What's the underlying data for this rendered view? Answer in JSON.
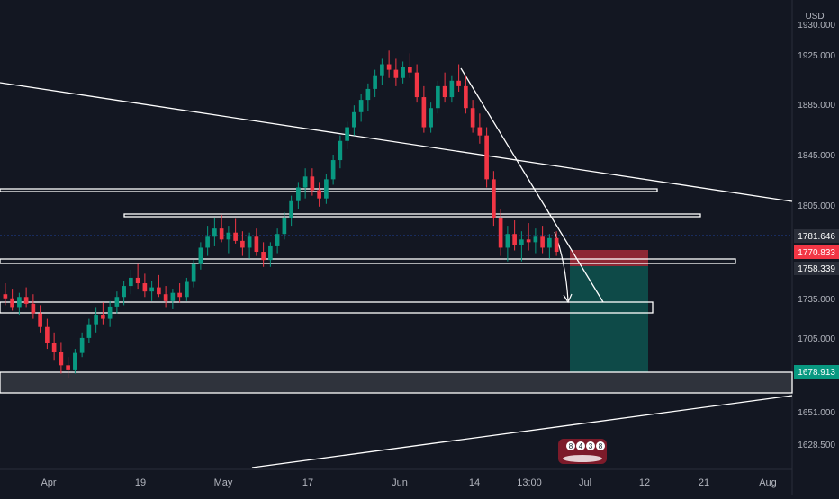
{
  "chart_data": {
    "type": "candlestick",
    "currency": "USD",
    "ylim": [
      1612,
      1955
    ],
    "price_ticks": [
      "1930.000",
      "1925.000",
      "1885.000",
      "1845.000",
      "1805.000",
      "1735.000",
      "1705.000",
      "1651.000",
      "1628.500"
    ],
    "time_ticks": [
      "Apr",
      "19",
      "May",
      "17",
      "Jun",
      "14",
      "13:00",
      "Jul",
      "12",
      "21",
      "Aug"
    ],
    "price_labels": [
      {
        "value": "1781.646",
        "color": "#2a2e39"
      },
      {
        "value": "1770.833",
        "color": "#f23645"
      },
      {
        "value": "1758.339",
        "color": "#2a2e39"
      },
      {
        "value": "1678.913",
        "color": "#089981"
      }
    ],
    "position": {
      "type": "short",
      "entry": 1770.833,
      "stop": 1781.646,
      "target": 1678.913
    },
    "candles_ohlc": [
      [
        1740,
        1748,
        1732,
        1737
      ],
      [
        1737,
        1744,
        1728,
        1730
      ],
      [
        1730,
        1741,
        1725,
        1738
      ],
      [
        1738,
        1745,
        1730,
        1733
      ],
      [
        1733,
        1740,
        1722,
        1726
      ],
      [
        1726,
        1732,
        1712,
        1716
      ],
      [
        1716,
        1722,
        1700,
        1704
      ],
      [
        1704,
        1712,
        1692,
        1698
      ],
      [
        1698,
        1705,
        1682,
        1688
      ],
      [
        1688,
        1694,
        1679,
        1685
      ],
      [
        1685,
        1700,
        1682,
        1697
      ],
      [
        1697,
        1712,
        1694,
        1708
      ],
      [
        1708,
        1722,
        1704,
        1718
      ],
      [
        1718,
        1730,
        1712,
        1725
      ],
      [
        1725,
        1734,
        1718,
        1722
      ],
      [
        1722,
        1735,
        1716,
        1731
      ],
      [
        1731,
        1742,
        1726,
        1738
      ],
      [
        1738,
        1750,
        1732,
        1746
      ],
      [
        1746,
        1758,
        1740,
        1752
      ],
      [
        1752,
        1762,
        1744,
        1748
      ],
      [
        1748,
        1755,
        1738,
        1742
      ],
      [
        1742,
        1750,
        1735,
        1745
      ],
      [
        1745,
        1754,
        1738,
        1740
      ],
      [
        1740,
        1746,
        1730,
        1735
      ],
      [
        1735,
        1744,
        1729,
        1741
      ],
      [
        1741,
        1748,
        1734,
        1738
      ],
      [
        1738,
        1752,
        1735,
        1749
      ],
      [
        1749,
        1765,
        1745,
        1762
      ],
      [
        1762,
        1778,
        1758,
        1774
      ],
      [
        1774,
        1790,
        1768,
        1782
      ],
      [
        1782,
        1796,
        1775,
        1788
      ],
      [
        1788,
        1798,
        1778,
        1780
      ],
      [
        1780,
        1790,
        1770,
        1785
      ],
      [
        1785,
        1795,
        1777,
        1779
      ],
      [
        1779,
        1786,
        1768,
        1774
      ],
      [
        1774,
        1785,
        1766,
        1782
      ],
      [
        1782,
        1788,
        1768,
        1771
      ],
      [
        1771,
        1778,
        1760,
        1765
      ],
      [
        1765,
        1778,
        1760,
        1775
      ],
      [
        1775,
        1788,
        1770,
        1784
      ],
      [
        1784,
        1800,
        1780,
        1796
      ],
      [
        1796,
        1812,
        1790,
        1808
      ],
      [
        1808,
        1822,
        1802,
        1818
      ],
      [
        1818,
        1832,
        1810,
        1826
      ],
      [
        1826,
        1832,
        1812,
        1816
      ],
      [
        1816,
        1822,
        1804,
        1810
      ],
      [
        1810,
        1828,
        1806,
        1824
      ],
      [
        1824,
        1842,
        1820,
        1838
      ],
      [
        1838,
        1856,
        1832,
        1852
      ],
      [
        1852,
        1866,
        1846,
        1862
      ],
      [
        1862,
        1878,
        1856,
        1873
      ],
      [
        1873,
        1886,
        1866,
        1882
      ],
      [
        1882,
        1894,
        1874,
        1890
      ],
      [
        1890,
        1904,
        1884,
        1900
      ],
      [
        1900,
        1912,
        1893,
        1908
      ],
      [
        1908,
        1918,
        1898,
        1904
      ],
      [
        1904,
        1912,
        1892,
        1898
      ],
      [
        1898,
        1910,
        1894,
        1906
      ],
      [
        1906,
        1916,
        1898,
        1902
      ],
      [
        1902,
        1908,
        1880,
        1884
      ],
      [
        1884,
        1892,
        1858,
        1862
      ],
      [
        1862,
        1880,
        1858,
        1876
      ],
      [
        1876,
        1896,
        1872,
        1892
      ],
      [
        1892,
        1902,
        1880,
        1884
      ],
      [
        1884,
        1900,
        1880,
        1896
      ],
      [
        1896,
        1908,
        1888,
        1892
      ],
      [
        1892,
        1900,
        1872,
        1876
      ],
      [
        1876,
        1882,
        1858,
        1862
      ],
      [
        1862,
        1872,
        1850,
        1856
      ],
      [
        1856,
        1862,
        1818,
        1824
      ],
      [
        1824,
        1830,
        1790,
        1796
      ],
      [
        1796,
        1802,
        1768,
        1774
      ],
      [
        1774,
        1790,
        1764,
        1784
      ],
      [
        1784,
        1794,
        1772,
        1776
      ],
      [
        1776,
        1786,
        1764,
        1780
      ],
      [
        1780,
        1792,
        1772,
        1778
      ],
      [
        1778,
        1788,
        1770,
        1782
      ],
      [
        1782,
        1790,
        1770,
        1774
      ],
      [
        1774,
        1784,
        1766,
        1781
      ],
      [
        1781,
        1786,
        1768,
        1771
      ]
    ]
  },
  "watermark": {
    "digits": [
      "8",
      "4",
      "3",
      "8"
    ]
  }
}
